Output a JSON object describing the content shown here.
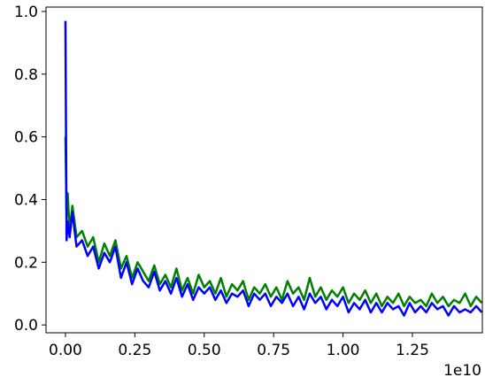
{
  "chart_data": {
    "type": "line",
    "x": [
      0,
      0.004,
      0.008,
      0.015,
      0.025,
      0.04,
      0.06,
      0.08,
      0.1,
      0.12,
      0.14,
      0.16,
      0.18,
      0.2,
      0.22,
      0.24,
      0.26,
      0.28,
      0.3,
      0.32,
      0.34,
      0.36,
      0.38,
      0.4,
      0.42,
      0.44,
      0.46,
      0.48,
      0.5,
      0.52,
      0.54,
      0.56,
      0.58,
      0.6,
      0.62,
      0.64,
      0.66,
      0.68,
      0.7,
      0.72,
      0.74,
      0.76,
      0.78,
      0.8,
      0.82,
      0.84,
      0.86,
      0.88,
      0.9,
      0.92,
      0.94,
      0.96,
      0.98,
      1.0,
      1.02,
      1.04,
      1.06,
      1.08,
      1.1,
      1.12,
      1.14,
      1.16,
      1.18,
      1.2,
      1.22,
      1.24,
      1.26,
      1.28,
      1.3,
      1.32,
      1.34,
      1.36,
      1.38,
      1.4,
      1.42,
      1.44,
      1.46,
      1.48,
      1.5
    ],
    "series": [
      {
        "color": "#008000",
        "values": [
          0.6,
          0.35,
          0.42,
          0.3,
          0.38,
          0.28,
          0.3,
          0.25,
          0.28,
          0.2,
          0.26,
          0.22,
          0.27,
          0.18,
          0.22,
          0.15,
          0.2,
          0.17,
          0.14,
          0.19,
          0.13,
          0.16,
          0.12,
          0.18,
          0.11,
          0.15,
          0.1,
          0.16,
          0.12,
          0.14,
          0.1,
          0.15,
          0.09,
          0.13,
          0.11,
          0.14,
          0.08,
          0.12,
          0.1,
          0.13,
          0.09,
          0.12,
          0.08,
          0.14,
          0.1,
          0.12,
          0.08,
          0.15,
          0.09,
          0.12,
          0.08,
          0.11,
          0.09,
          0.12,
          0.07,
          0.1,
          0.08,
          0.11,
          0.07,
          0.1,
          0.06,
          0.09,
          0.07,
          0.1,
          0.06,
          0.09,
          0.07,
          0.08,
          0.06,
          0.1,
          0.07,
          0.09,
          0.06,
          0.08,
          0.07,
          0.1,
          0.06,
          0.09,
          0.07
        ]
      },
      {
        "color": "#0000ff",
        "values": [
          0.97,
          0.27,
          0.33,
          0.28,
          0.36,
          0.25,
          0.27,
          0.22,
          0.25,
          0.18,
          0.23,
          0.2,
          0.25,
          0.15,
          0.2,
          0.13,
          0.18,
          0.14,
          0.12,
          0.17,
          0.11,
          0.14,
          0.1,
          0.15,
          0.09,
          0.13,
          0.08,
          0.12,
          0.1,
          0.12,
          0.08,
          0.11,
          0.07,
          0.1,
          0.09,
          0.11,
          0.06,
          0.1,
          0.08,
          0.1,
          0.06,
          0.09,
          0.07,
          0.1,
          0.06,
          0.09,
          0.05,
          0.1,
          0.07,
          0.09,
          0.05,
          0.08,
          0.06,
          0.09,
          0.04,
          0.07,
          0.05,
          0.08,
          0.04,
          0.07,
          0.04,
          0.07,
          0.05,
          0.06,
          0.03,
          0.07,
          0.04,
          0.06,
          0.04,
          0.07,
          0.05,
          0.06,
          0.03,
          0.06,
          0.04,
          0.05,
          0.04,
          0.06,
          0.04
        ]
      }
    ],
    "xlim": [
      -0.07,
      1.502
    ],
    "ylim": [
      -0.025,
      1.014
    ],
    "xticks": [
      {
        "value": 0,
        "label": "0.00"
      },
      0.25,
      {
        "value": 0.5,
        "label": "0.50"
      },
      {
        "value": 0.75,
        "label": "0.75"
      },
      {
        "value": 1,
        "label": "1.00"
      },
      1.25
    ],
    "yticks": [
      {
        "value": 0,
        "label": "0.0"
      },
      0.2,
      0.4,
      0.6,
      0.8,
      {
        "value": 1,
        "label": "1.0"
      }
    ],
    "x_offset_text": "1e10"
  }
}
